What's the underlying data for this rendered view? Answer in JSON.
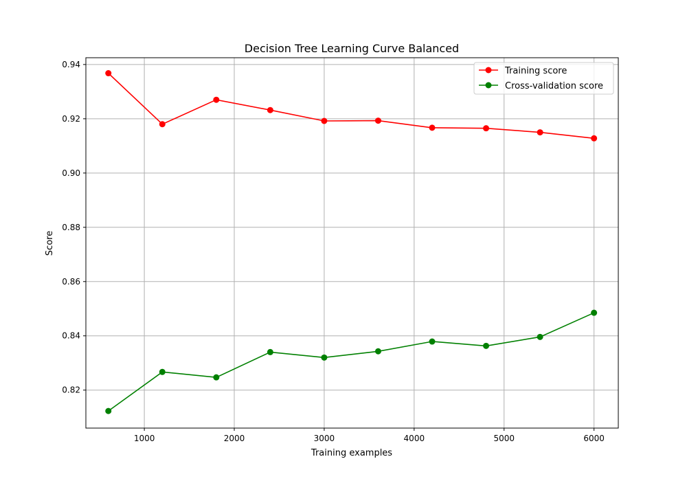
{
  "chart_data": {
    "type": "line",
    "title": "Decision Tree Learning Curve Balanced",
    "xlabel": "Training examples",
    "ylabel": "Score",
    "xlim": [
      350,
      6270
    ],
    "ylim": [
      0.806,
      0.9425
    ],
    "x_ticks": [
      1000,
      2000,
      3000,
      4000,
      5000,
      6000
    ],
    "y_ticks": [
      0.82,
      0.84,
      0.86,
      0.88,
      0.9,
      0.92,
      0.94
    ],
    "x_tick_labels": [
      "1000",
      "2000",
      "3000",
      "4000",
      "5000",
      "6000"
    ],
    "y_tick_labels": [
      "0.82",
      "0.84",
      "0.86",
      "0.88",
      "0.90",
      "0.92",
      "0.94"
    ],
    "grid": true,
    "legend_position": "top-right",
    "x": [
      600,
      1200,
      1800,
      2400,
      3000,
      3600,
      4200,
      4800,
      5400,
      6000
    ],
    "series": [
      {
        "name": "Training score",
        "color": "#ff0000",
        "values": [
          0.9368,
          0.918,
          0.927,
          0.9232,
          0.9192,
          0.9193,
          0.9167,
          0.9165,
          0.915,
          0.9128
        ]
      },
      {
        "name": "Cross-validation score",
        "color": "#008000",
        "values": [
          0.8123,
          0.8267,
          0.8247,
          0.834,
          0.832,
          0.8343,
          0.8379,
          0.8363,
          0.8396,
          0.8485
        ]
      }
    ]
  }
}
